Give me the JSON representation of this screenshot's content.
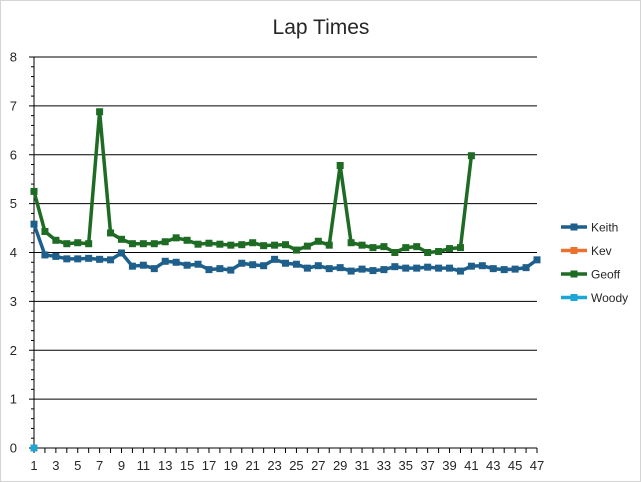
{
  "chart_data": {
    "type": "line",
    "title": "Lap Times",
    "xlabel": "",
    "ylabel": "",
    "ylim": [
      0,
      8
    ],
    "yticks": [
      0,
      1,
      2,
      3,
      4,
      5,
      6,
      7,
      8
    ],
    "xlim": [
      1,
      47
    ],
    "xticks": [
      1,
      3,
      5,
      7,
      9,
      11,
      13,
      15,
      17,
      19,
      21,
      23,
      25,
      27,
      29,
      31,
      33,
      35,
      37,
      39,
      41,
      43,
      45,
      47
    ],
    "grid": "horizontal",
    "legend_position": "right",
    "series": [
      {
        "name": "Keith",
        "color": "#1f5f8b",
        "x": [
          1,
          2,
          3,
          4,
          5,
          6,
          7,
          8,
          9,
          10,
          11,
          12,
          13,
          14,
          15,
          16,
          17,
          18,
          19,
          20,
          21,
          22,
          23,
          24,
          25,
          26,
          27,
          28,
          29,
          30,
          31,
          32,
          33,
          34,
          35,
          36,
          37,
          38,
          39,
          40,
          41,
          42,
          43,
          44,
          45,
          46,
          47
        ],
        "values": [
          4.58,
          3.95,
          3.92,
          3.87,
          3.87,
          3.88,
          3.86,
          3.85,
          3.99,
          3.72,
          3.74,
          3.67,
          3.82,
          3.8,
          3.74,
          3.76,
          3.65,
          3.67,
          3.64,
          3.78,
          3.75,
          3.73,
          3.86,
          3.78,
          3.76,
          3.68,
          3.73,
          3.67,
          3.69,
          3.62,
          3.66,
          3.63,
          3.65,
          3.71,
          3.68,
          3.68,
          3.7,
          3.68,
          3.68,
          3.62,
          3.72,
          3.73,
          3.67,
          3.65,
          3.66,
          3.69,
          3.85
        ]
      },
      {
        "name": "Kev",
        "color": "#e97132",
        "x": [],
        "values": []
      },
      {
        "name": "Geoff",
        "color": "#1e6b24",
        "x": [
          1,
          2,
          3,
          4,
          5,
          6,
          7,
          8,
          9,
          10,
          11,
          12,
          13,
          14,
          15,
          16,
          17,
          18,
          19,
          20,
          21,
          22,
          23,
          24,
          25,
          26,
          27,
          28,
          29,
          30,
          31,
          32,
          33,
          34,
          35,
          36,
          37,
          38,
          39,
          40,
          41
        ],
        "values": [
          5.25,
          4.43,
          4.25,
          4.18,
          4.2,
          4.18,
          6.88,
          4.4,
          4.27,
          4.18,
          4.18,
          4.18,
          4.22,
          4.3,
          4.25,
          4.17,
          4.19,
          4.17,
          4.15,
          4.16,
          4.2,
          4.14,
          4.15,
          4.16,
          4.05,
          4.13,
          4.23,
          4.15,
          5.78,
          4.2,
          4.15,
          4.1,
          4.12,
          4.0,
          4.1,
          4.12,
          4.0,
          4.02,
          4.08,
          4.1,
          5.98
        ]
      },
      {
        "name": "Woody",
        "color": "#1ea5d8",
        "x": [
          1
        ],
        "values": [
          0
        ]
      }
    ]
  }
}
